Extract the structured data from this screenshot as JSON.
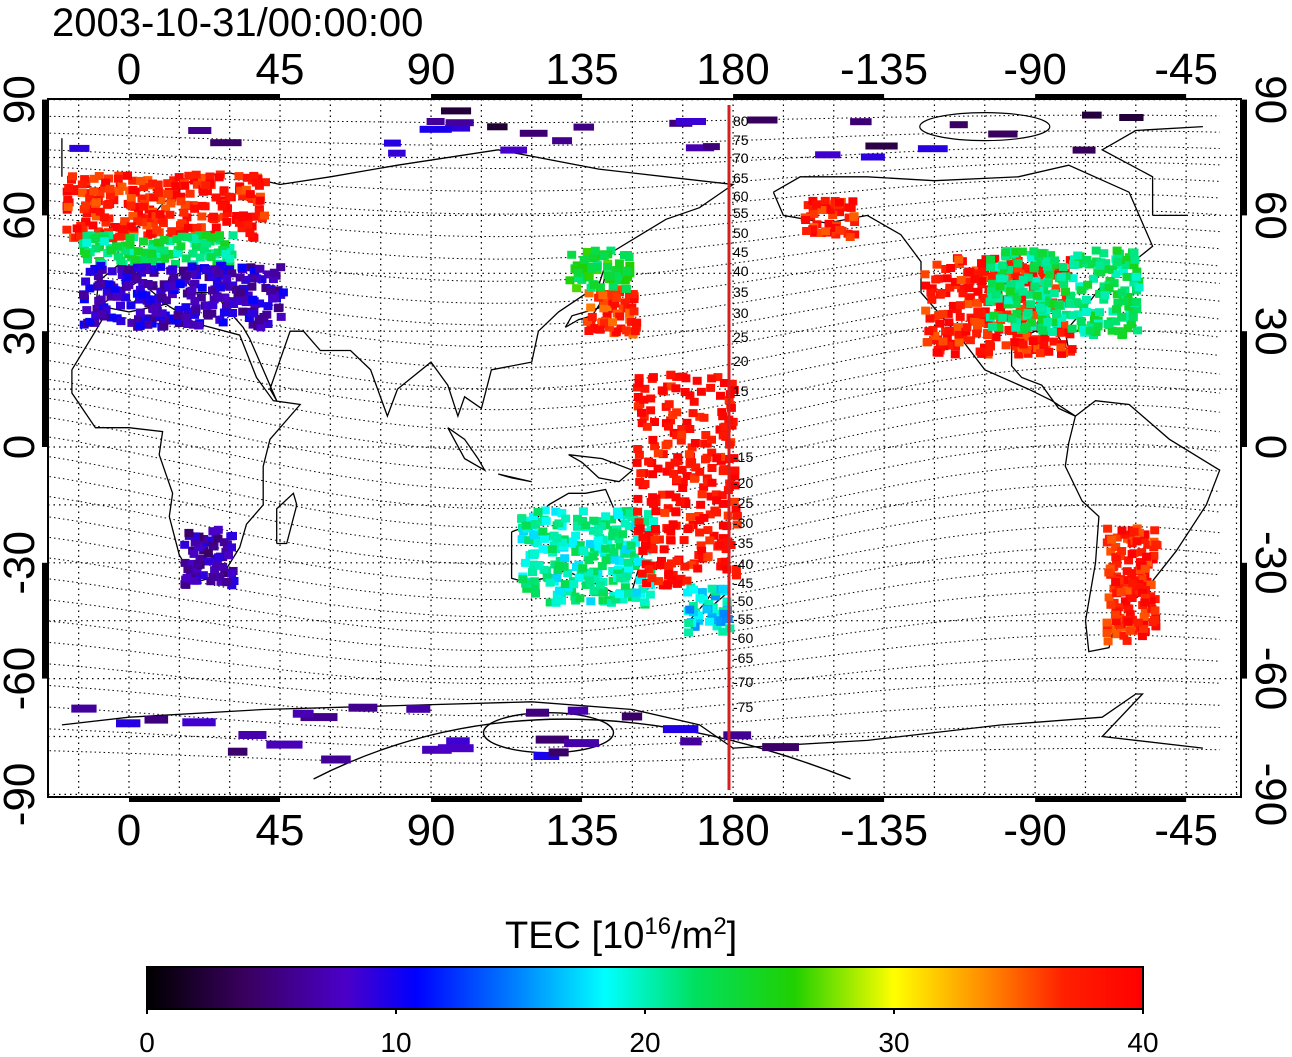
{
  "title": "2003-10-31/00:00:00",
  "x_ticks_top": [
    "0",
    "45",
    "90",
    "135",
    "180",
    "-135",
    "-90",
    "-45"
  ],
  "x_ticks_bottom": [
    "0",
    "45",
    "90",
    "135",
    "180",
    "-135",
    "-90",
    "-45"
  ],
  "y_ticks_left": [
    "90",
    "60",
    "30",
    "0",
    "-30",
    "-60",
    "-90"
  ],
  "y_ticks_right": [
    "90",
    "60",
    "30",
    "0",
    "-30",
    "-60",
    "-90"
  ],
  "meridian_labels": [
    "80",
    "75",
    "70",
    "65",
    "60",
    "55",
    "50",
    "45",
    "40",
    "35",
    "30",
    "25",
    "20",
    "15",
    "-15",
    "-20",
    "-25",
    "-30",
    "-35",
    "-40",
    "-45",
    "-50",
    "-55",
    "-60",
    "-65",
    "-70",
    "-75"
  ],
  "colorbar": {
    "label_main": "TEC  [10",
    "label_sup1": "16",
    "label_mid": "/m",
    "label_sup2": "2",
    "label_end": "]",
    "ticks": [
      "0",
      "10",
      "20",
      "30",
      "40"
    ],
    "range": [
      0,
      40
    ]
  },
  "colors": {
    "meridian_line": "#d42020",
    "frame": "#000000"
  },
  "chart_data": {
    "type": "heatmap",
    "title": "2003-10-31/00:00:00",
    "projection": "equirectangular, central longitude 150E",
    "xlim": [
      -25,
      325
    ],
    "ylim": [
      -90,
      90
    ],
    "grid": true,
    "colorbar_range": [
      0,
      40
    ],
    "colorbar_label": "TEC  [10^16/m^2]",
    "regions": [
      {
        "lon": [
          -20,
          40
        ],
        "lat": [
          55,
          72
        ],
        "tec": 38
      },
      {
        "lon": [
          -15,
          30
        ],
        "lat": [
          48,
          56
        ],
        "tec": 22
      },
      {
        "lon": [
          -15,
          45
        ],
        "lat": [
          32,
          48
        ],
        "tec": 8
      },
      {
        "lon": [
          15,
          30
        ],
        "lat": [
          -35,
          -20
        ],
        "tec": 7
      },
      {
        "lon": [
          135,
          150
        ],
        "lat": [
          30,
          42
        ],
        "tec": 37
      },
      {
        "lon": [
          130,
          148
        ],
        "lat": [
          42,
          52
        ],
        "tec": 24
      },
      {
        "lon": [
          115,
          155
        ],
        "lat": [
          -40,
          -15
        ],
        "tec": 20
      },
      {
        "lon": [
          165,
          178
        ],
        "lat": [
          -47,
          -35
        ],
        "tec": 18
      },
      {
        "lon": [
          235,
          280
        ],
        "lat": [
          25,
          50
        ],
        "tec": 38
      },
      {
        "lon": [
          255,
          300
        ],
        "lat": [
          30,
          52
        ],
        "tec": 22
      },
      {
        "lon": [
          290,
          305
        ],
        "lat": [
          -50,
          -20
        ],
        "tec": 38
      },
      {
        "lon": [
          200,
          215
        ],
        "lat": [
          55,
          65
        ],
        "tec": 38
      },
      {
        "lon": [
          150,
          180
        ],
        "lat": [
          -35,
          20
        ],
        "tec": 39
      }
    ]
  }
}
